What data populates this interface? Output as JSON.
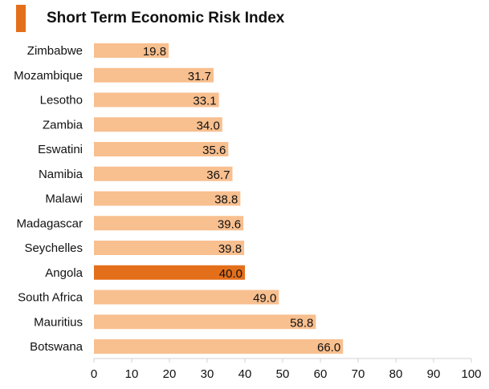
{
  "colors": {
    "accent": "#e46f1b",
    "bar": "#f8bf8f",
    "highlight": "#e46f1b",
    "axis": "#d0d0d0",
    "text": "#111111"
  },
  "chart_data": {
    "type": "bar",
    "orientation": "horizontal",
    "title": "Short Term Economic Risk Index",
    "categories": [
      "Zimbabwe",
      "Mozambique",
      "Lesotho",
      "Zambia",
      "Eswatini",
      "Namibia",
      "Malawi",
      "Madagascar",
      "Seychelles",
      "Angola",
      "South Africa",
      "Mauritius",
      "Botswana"
    ],
    "values": [
      19.8,
      31.7,
      33.1,
      34.0,
      35.6,
      36.7,
      38.8,
      39.6,
      39.8,
      40.0,
      49.0,
      58.8,
      66.0
    ],
    "value_labels": [
      "19.8",
      "31.7",
      "33.1",
      "34.0",
      "35.6",
      "36.7",
      "38.8",
      "39.6",
      "39.8",
      "40.0",
      "49.0",
      "58.8",
      "66.0"
    ],
    "highlighted": "Angola",
    "xlim": [
      0,
      100
    ],
    "xticks": [
      "0",
      "10",
      "20",
      "30",
      "40",
      "50",
      "60",
      "70",
      "80",
      "90",
      "100"
    ],
    "grid": false,
    "legend": "none"
  }
}
